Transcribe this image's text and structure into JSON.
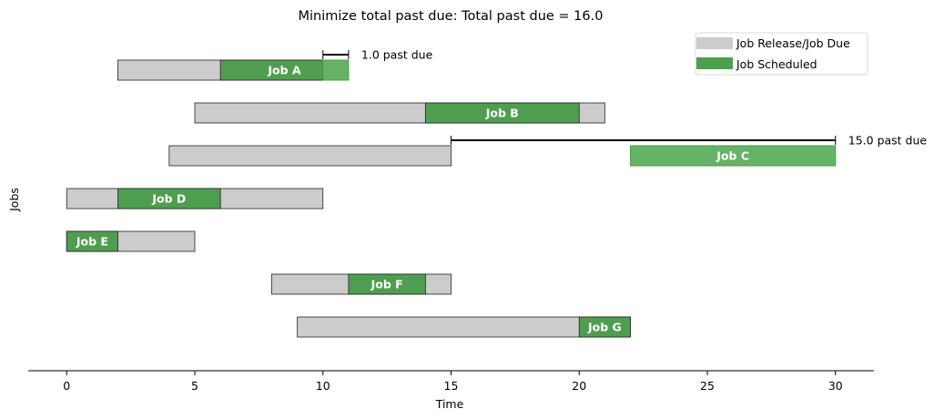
{
  "chart_data": {
    "type": "gantt",
    "title": "Minimize total past due: Total past due = 16.0",
    "xlabel": "Time",
    "ylabel": "Jobs",
    "xlim": [
      -1.5,
      31.5
    ],
    "xticks": [
      0,
      5,
      10,
      15,
      20,
      25,
      30
    ],
    "xtick_labels": [
      "0",
      "5",
      "10",
      "15",
      "20",
      "25",
      "30"
    ],
    "legend": {
      "placement": "top-right",
      "entries": [
        "Job Release/Job Due",
        "Job Scheduled"
      ]
    },
    "colors": {
      "window": "#cccccc",
      "scheduled": "#4f9e4f",
      "late_scheduled": "#66b266"
    },
    "jobs": [
      {
        "label": "Job A",
        "release": 2,
        "due": 10,
        "start": 6,
        "end": 11,
        "past_due": 1.0,
        "past_due_label": "1.0 past due"
      },
      {
        "label": "Job B",
        "release": 5,
        "due": 21,
        "start": 14,
        "end": 20,
        "past_due": 0
      },
      {
        "label": "Job C",
        "release": 4,
        "due": 15,
        "start": 22,
        "end": 30,
        "past_due": 15.0,
        "past_due_label": "15.0 past due"
      },
      {
        "label": "Job D",
        "release": 0,
        "due": 10,
        "start": 2,
        "end": 6,
        "past_due": 0
      },
      {
        "label": "Job E",
        "release": 0,
        "due": 5,
        "start": 0,
        "end": 2,
        "past_due": 0
      },
      {
        "label": "Job F",
        "release": 8,
        "due": 15,
        "start": 11,
        "end": 14,
        "past_due": 0
      },
      {
        "label": "Job G",
        "release": 9,
        "due": 22,
        "start": 20,
        "end": 22,
        "past_due": 0
      }
    ]
  }
}
